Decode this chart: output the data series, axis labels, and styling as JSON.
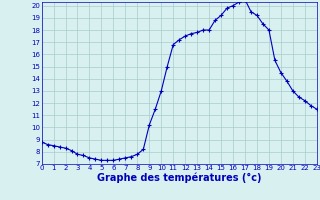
{
  "x": [
    0,
    0.5,
    1,
    1.5,
    2,
    2.5,
    3,
    3.5,
    4,
    4.5,
    5,
    5.5,
    6,
    6.5,
    7,
    7.5,
    8,
    8.5,
    9,
    9.5,
    10,
    10.5,
    11,
    11.5,
    12,
    12.5,
    13,
    13.5,
    14,
    14.5,
    15,
    15.5,
    16,
    16.5,
    17,
    17.5,
    18,
    18.5,
    19,
    19.5,
    20,
    20.5,
    21,
    21.5,
    22,
    22.5,
    23
  ],
  "y": [
    8.8,
    8.6,
    8.5,
    8.4,
    8.3,
    8.1,
    7.8,
    7.7,
    7.5,
    7.4,
    7.3,
    7.3,
    7.3,
    7.4,
    7.5,
    7.6,
    7.8,
    8.2,
    10.2,
    11.5,
    13.0,
    15.0,
    16.8,
    17.2,
    17.5,
    17.7,
    17.8,
    18.0,
    18.0,
    18.8,
    19.2,
    19.8,
    20.0,
    20.3,
    20.5,
    19.5,
    19.2,
    18.5,
    18.0,
    15.5,
    14.5,
    13.8,
    13.0,
    12.5,
    12.2,
    11.8,
    11.5
  ],
  "line_color": "#0000bb",
  "marker": "+",
  "markersize": 3.5,
  "linewidth": 0.8,
  "bg_color": "#d8f0f0",
  "grid_color": "#aacccc",
  "xlabel": "Graphe des températures (°c)",
  "xlim": [
    0,
    23
  ],
  "ylim": [
    7,
    20.3
  ],
  "yticks": [
    7,
    8,
    9,
    10,
    11,
    12,
    13,
    14,
    15,
    16,
    17,
    18,
    19,
    20
  ],
  "xticks": [
    0,
    1,
    2,
    3,
    4,
    5,
    6,
    7,
    8,
    9,
    10,
    11,
    12,
    13,
    14,
    15,
    16,
    17,
    18,
    19,
    20,
    21,
    22,
    23
  ],
  "tick_fontsize": 5.0,
  "xlabel_fontsize": 7.0,
  "xlabel_color": "#0000bb",
  "xlabel_bold": true
}
